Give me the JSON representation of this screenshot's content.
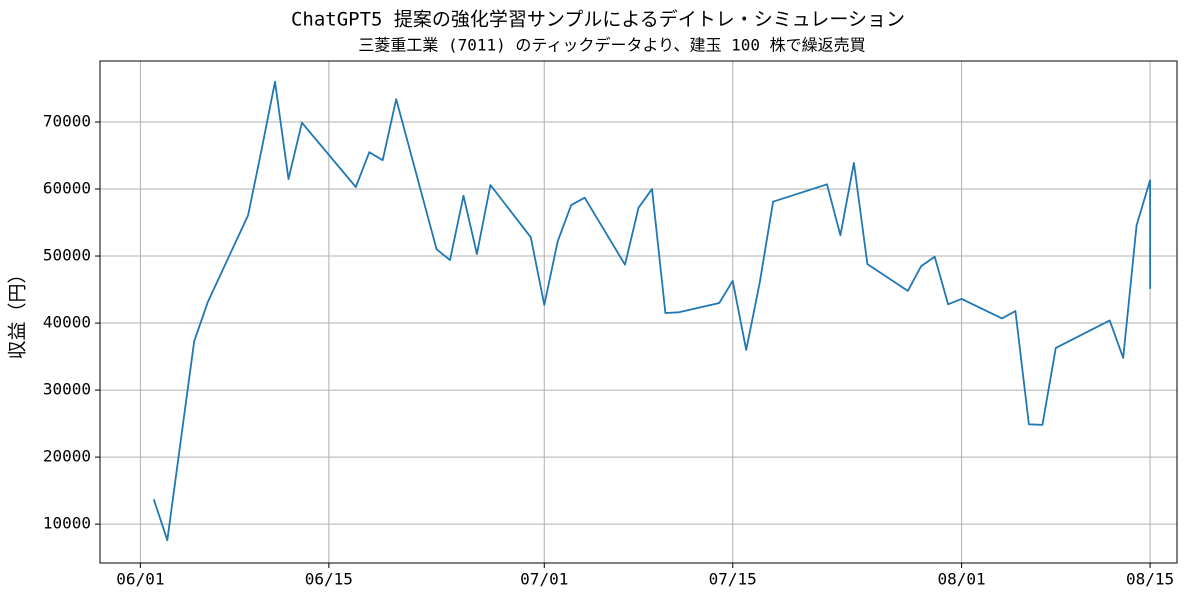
{
  "chart_data": {
    "type": "line",
    "title": "ChatGPT5 提案の強化学習サンプルによるデイトレ・シミュレーション",
    "subtitle": "三菱重工業 (7011) のティックデータより、建玉 100 株で繰返売買",
    "y_label": "収益（円）",
    "x": [
      "06/02",
      "06/03",
      "06/05",
      "06/06",
      "06/09",
      "06/10",
      "06/11",
      "06/12",
      "06/13",
      "06/17",
      "06/18",
      "06/19",
      "06/20",
      "06/23",
      "06/24",
      "06/25",
      "06/26",
      "06/27",
      "06/30",
      "07/01",
      "07/02",
      "07/03",
      "07/04",
      "07/07",
      "07/08",
      "07/09",
      "07/10",
      "07/11",
      "07/14",
      "07/15",
      "07/16",
      "07/17",
      "07/18",
      "07/22",
      "07/23",
      "07/24",
      "07/25",
      "07/28",
      "07/29",
      "07/30",
      "07/31",
      "08/01",
      "08/04",
      "08/05",
      "08/06",
      "08/07",
      "08/08",
      "08/12",
      "08/13",
      "08/14",
      "08/15",
      "08/15"
    ],
    "series": [
      {
        "name": "収益",
        "color": "#1f77b4",
        "values": [
          13700,
          7600,
          37300,
          43100,
          56100,
          65800,
          76000,
          61500,
          69900,
          60300,
          65500,
          64300,
          73400,
          51000,
          49400,
          59000,
          50300,
          60600,
          52800,
          42700,
          52200,
          57600,
          58700,
          48700,
          57200,
          60000,
          41500,
          41600,
          43000,
          46300,
          36000,
          46000,
          58100,
          60700,
          53100,
          63900,
          48800,
          44800,
          48500,
          49900,
          42800,
          43600,
          40700,
          41800,
          24900,
          24800,
          36300,
          40400,
          34800,
          54600,
          61300,
          45100
        ]
      }
    ],
    "xlim": [
      "05/29",
      "08/17"
    ],
    "xticks": [
      "06/01",
      "06/15",
      "07/01",
      "07/15",
      "08/01",
      "08/15"
    ],
    "ylim": [
      4200,
      79100
    ],
    "yticks": [
      10000,
      20000,
      30000,
      40000,
      50000,
      60000,
      70000
    ],
    "grid": true
  }
}
